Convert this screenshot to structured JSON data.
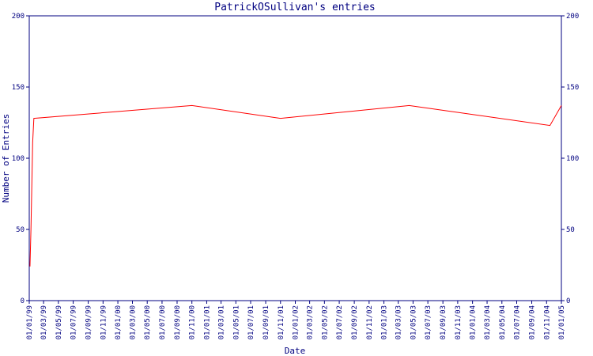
{
  "chart_data": {
    "type": "line",
    "title": "PatrickOSullivan's entries",
    "x_label": "Date",
    "y_label": "Number of Entries",
    "x": [
      "04/01/99",
      "08/01/99",
      "11/01/99",
      "15/01/99",
      "20/01/99",
      "01/11/00",
      "01/11/01",
      "15/04/03",
      "15/11/04",
      "01/01/05"
    ],
    "series": [
      {
        "name": "PatrickOSullivan",
        "color": "#ff0000",
        "values": [
          24,
          50,
          76,
          111,
          128,
          137,
          128,
          137,
          123,
          137
        ]
      }
    ],
    "xlim": [
      "01/01/99",
      "01/01/05"
    ],
    "xticks": [
      "01/01/99",
      "01/03/99",
      "01/05/99",
      "01/07/99",
      "01/09/99",
      "01/11/99",
      "01/01/00",
      "01/03/00",
      "01/05/00",
      "01/07/00",
      "01/09/00",
      "01/11/00",
      "01/01/01",
      "01/03/01",
      "01/05/01",
      "01/07/01",
      "01/09/01",
      "01/11/01",
      "01/01/02",
      "01/03/02",
      "01/05/02",
      "01/07/02",
      "01/09/02",
      "01/11/02",
      "01/01/03",
      "01/03/03",
      "01/05/03",
      "01/07/03",
      "01/09/03",
      "01/11/03",
      "01/01/04",
      "01/03/04",
      "01/05/04",
      "01/07/04",
      "01/09/04",
      "01/11/04",
      "01/01/05"
    ],
    "ylim": [
      0,
      200
    ],
    "yticks": [
      0,
      50,
      100,
      150,
      200
    ],
    "axis_color": "#000080"
  }
}
